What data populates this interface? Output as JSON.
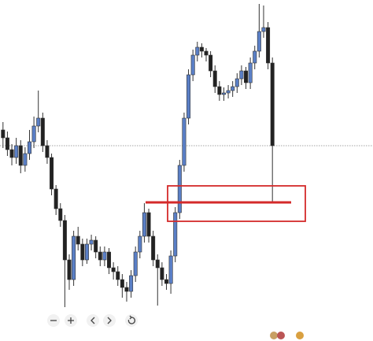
{
  "chart_data": {
    "type": "candlestick",
    "categories": [
      null,
      null,
      null,
      null,
      null,
      null,
      null,
      null,
      null,
      null,
      null,
      null,
      null,
      null,
      null,
      null,
      null,
      null,
      null,
      null,
      null,
      null,
      null,
      null,
      null,
      null,
      null,
      null,
      null,
      null,
      null,
      null,
      null,
      null,
      null,
      null,
      null,
      null,
      null,
      null,
      null,
      null,
      null,
      null,
      null,
      null,
      null,
      null,
      null,
      null,
      null,
      null,
      null,
      null,
      null,
      null,
      null,
      null,
      null,
      null,
      null,
      null
    ],
    "open": [
      268,
      258,
      243,
      233,
      248,
      223,
      238,
      253,
      273,
      283,
      248,
      233,
      193,
      168,
      153,
      103,
      78,
      133,
      123,
      103,
      123,
      128,
      113,
      103,
      113,
      93,
      88,
      78,
      68,
      63,
      83,
      113,
      133,
      163,
      133,
      103,
      93,
      78,
      73,
      108,
      163,
      223,
      283,
      338,
      363,
      373,
      368,
      363,
      343,
      323,
      313,
      315,
      318,
      323,
      333,
      343,
      328,
      353,
      368,
      393,
      398,
      353
    ],
    "high": [
      278,
      266,
      250,
      258,
      255,
      246,
      268,
      285,
      318,
      290,
      255,
      238,
      198,
      175,
      160,
      110,
      140,
      145,
      130,
      130,
      135,
      133,
      120,
      120,
      118,
      100,
      95,
      85,
      75,
      90,
      120,
      140,
      175,
      168,
      140,
      110,
      100,
      85,
      115,
      170,
      230,
      290,
      345,
      370,
      380,
      378,
      372,
      368,
      350,
      330,
      322,
      325,
      330,
      340,
      350,
      348,
      360,
      375,
      428,
      426,
      405,
      360
    ],
    "low": [
      245,
      235,
      223,
      225,
      213,
      215,
      230,
      245,
      265,
      240,
      225,
      185,
      160,
      145,
      43,
      65,
      70,
      115,
      95,
      98,
      115,
      105,
      95,
      95,
      85,
      78,
      70,
      55,
      50,
      55,
      75,
      105,
      125,
      125,
      95,
      45,
      70,
      65,
      60,
      100,
      155,
      215,
      275,
      330,
      355,
      360,
      355,
      335,
      315,
      305,
      305,
      308,
      310,
      315,
      325,
      320,
      320,
      345,
      360,
      385,
      345,
      175
    ],
    "close": [
      258,
      243,
      233,
      248,
      223,
      238,
      253,
      273,
      283,
      248,
      233,
      193,
      168,
      153,
      103,
      78,
      133,
      123,
      103,
      123,
      128,
      113,
      103,
      113,
      93,
      88,
      78,
      68,
      63,
      83,
      113,
      133,
      163,
      133,
      103,
      93,
      78,
      73,
      108,
      163,
      223,
      283,
      338,
      363,
      373,
      368,
      363,
      343,
      323,
      313,
      315,
      318,
      323,
      333,
      343,
      328,
      353,
      368,
      393,
      398,
      353,
      248
    ],
    "up_color": "#5a7fc6",
    "down_color": "#222222",
    "ylim": [
      0,
      433
    ]
  }
}
